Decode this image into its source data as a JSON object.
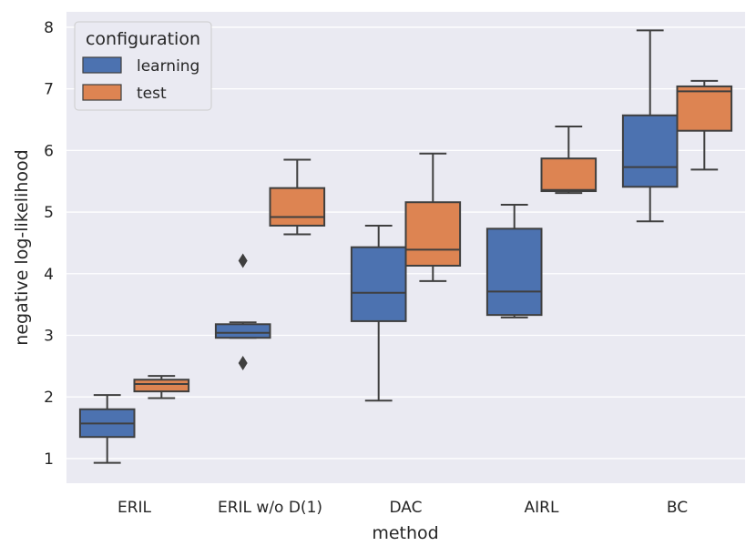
{
  "chart_data": {
    "type": "boxplot",
    "xlabel": "method",
    "ylabel": "negative log-likelihood",
    "categories": [
      "ERIL",
      "ERIL w/o D(1)",
      "DAC",
      "AIRL",
      "BC"
    ],
    "ylim": [
      0.6,
      8.25
    ],
    "yticks": [
      1,
      2,
      3,
      4,
      5,
      6,
      7,
      8
    ],
    "ytick_labels": [
      "1",
      "2",
      "3",
      "4",
      "5",
      "6",
      "7",
      "8"
    ],
    "grid": true,
    "legend": {
      "title": "configuration",
      "position": "top-left"
    },
    "series": [
      {
        "name": "learning",
        "color": "#4c72b0",
        "boxes": [
          {
            "whislo": 0.93,
            "q1": 1.35,
            "med": 1.57,
            "q3": 1.8,
            "whishi": 2.03,
            "fliers": []
          },
          {
            "whislo": 2.96,
            "q1": 2.96,
            "med": 3.04,
            "q3": 3.18,
            "whishi": 3.21,
            "fliers": [
              4.21,
              2.55
            ]
          },
          {
            "whislo": 1.94,
            "q1": 3.23,
            "med": 3.69,
            "q3": 4.43,
            "whishi": 4.78,
            "fliers": []
          },
          {
            "whislo": 3.29,
            "q1": 3.33,
            "med": 3.71,
            "q3": 4.73,
            "whishi": 5.12,
            "fliers": []
          },
          {
            "whislo": 4.85,
            "q1": 5.41,
            "med": 5.73,
            "q3": 6.57,
            "whishi": 7.95,
            "fliers": []
          }
        ]
      },
      {
        "name": "test",
        "color": "#dd8452",
        "boxes": [
          {
            "whislo": 1.98,
            "q1": 2.09,
            "med": 2.21,
            "q3": 2.28,
            "whishi": 2.34,
            "fliers": []
          },
          {
            "whislo": 4.64,
            "q1": 4.78,
            "med": 4.92,
            "q3": 5.39,
            "whishi": 5.85,
            "fliers": []
          },
          {
            "whislo": 3.88,
            "q1": 4.13,
            "med": 4.39,
            "q3": 5.16,
            "whishi": 5.95,
            "fliers": []
          },
          {
            "whislo": 5.31,
            "q1": 5.34,
            "med": 5.36,
            "q3": 5.87,
            "whishi": 6.39,
            "fliers": []
          },
          {
            "whislo": 5.69,
            "q1": 6.32,
            "med": 6.96,
            "q3": 7.04,
            "whishi": 7.13,
            "fliers": []
          }
        ]
      }
    ]
  }
}
